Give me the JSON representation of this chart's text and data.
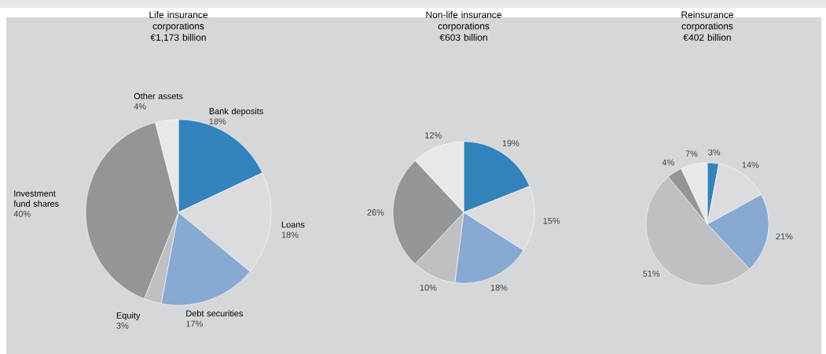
{
  "chart_data": [
    {
      "type": "pie",
      "title": "Life insurance corporations",
      "subtitle": "€1,173 billion",
      "categories": [
        "Bank deposits",
        "Loans",
        "Debt securities",
        "Equity",
        "Investment fund shares",
        "Other assets"
      ],
      "values": [
        18,
        18,
        17,
        3,
        40,
        4
      ],
      "value_labels": [
        "18%",
        "18%",
        "17%",
        "3%",
        "40%",
        "4%"
      ],
      "colors": [
        "#3383bd",
        "#dcdcde",
        "#87a9d2",
        "#bfc0c3",
        "#939598",
        "#e8e8e8"
      ]
    },
    {
      "type": "pie",
      "title": "Non-life insurance corporations",
      "subtitle": "€603 billion",
      "categories": [
        null,
        null,
        null,
        null,
        null,
        null
      ],
      "values": [
        19,
        15,
        18,
        10,
        26,
        12
      ],
      "value_labels": [
        "19%",
        "15%",
        "18%",
        "10%",
        "26%",
        "12%"
      ],
      "colors": [
        "#3383bd",
        "#dcdcde",
        "#87a9d2",
        "#bfc0c3",
        "#939598",
        "#e8e8e8"
      ]
    },
    {
      "type": "pie",
      "title": "Reinsurance corporations",
      "subtitle": "€402 billion",
      "categories": [
        null,
        null,
        null,
        null,
        null,
        null
      ],
      "values": [
        3,
        14,
        21,
        51,
        4,
        7
      ],
      "value_labels": [
        "3%",
        "14%",
        "21%",
        "51%",
        "4%",
        "7%"
      ],
      "colors": [
        "#3383bd",
        "#dcdcde",
        "#87a9d2",
        "#bfc0c3",
        "#939598",
        "#e8e8e8"
      ]
    }
  ]
}
